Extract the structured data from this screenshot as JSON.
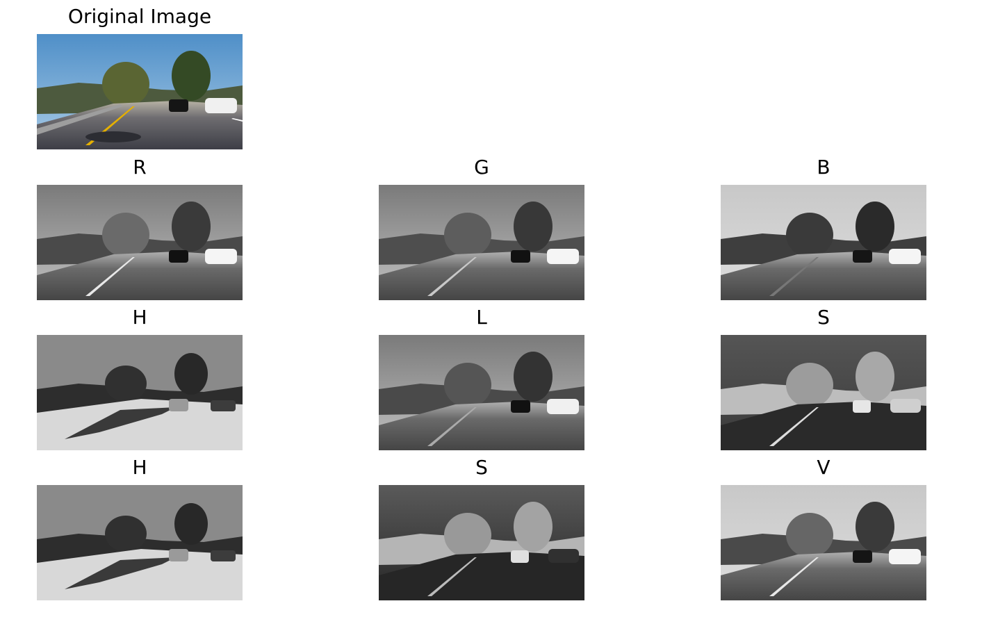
{
  "figure": {
    "original": {
      "title": "Original Image"
    },
    "rgb": [
      {
        "title": "R"
      },
      {
        "title": "G"
      },
      {
        "title": "B"
      }
    ],
    "hls": [
      {
        "title": "H"
      },
      {
        "title": "L"
      },
      {
        "title": "S"
      }
    ],
    "hsv": [
      {
        "title": "H"
      },
      {
        "title": "S"
      },
      {
        "title": "V"
      }
    ]
  }
}
